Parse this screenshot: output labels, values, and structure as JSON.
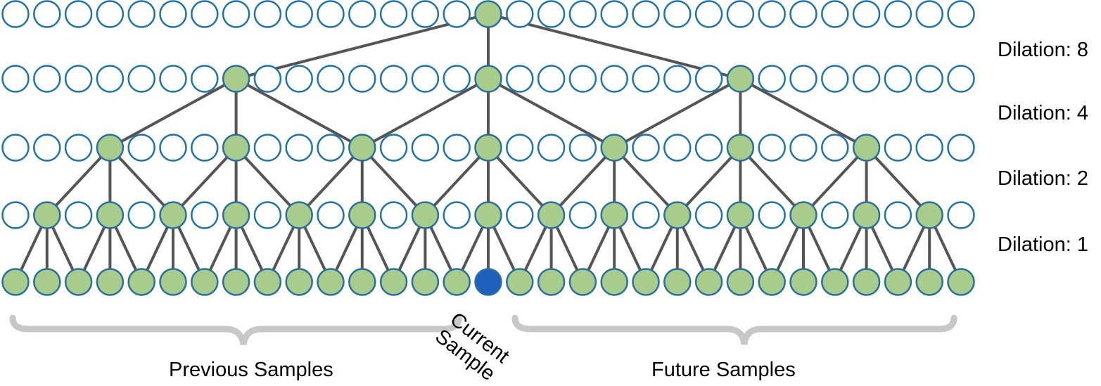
{
  "labels": {
    "dilation_8": "Dilation: 8",
    "dilation_4": "Dilation: 4",
    "dilation_2": "Dilation: 2",
    "dilation_1": "Dilation: 1",
    "previous_samples": "Previous Samples",
    "future_samples": "Future Samples",
    "current_line1": "Current",
    "current_line2": "Sample"
  },
  "network": {
    "nodes_per_row": 31,
    "current_index": 15,
    "rows": [
      {
        "active": [
          15
        ]
      },
      {
        "active": [
          7,
          15,
          23
        ]
      },
      {
        "active": [
          3,
          7,
          11,
          15,
          19,
          23,
          27
        ]
      },
      {
        "active": [
          1,
          3,
          5,
          7,
          9,
          11,
          13,
          15,
          17,
          19,
          21,
          23,
          25,
          27,
          29
        ]
      },
      {
        "active": "all"
      }
    ],
    "connections": [
      {
        "from_row": 0,
        "to_row": 1,
        "offsets": [
          -8,
          0,
          8
        ]
      },
      {
        "from_row": 1,
        "to_row": 2,
        "offsets": [
          -4,
          0,
          4
        ]
      },
      {
        "from_row": 2,
        "to_row": 3,
        "offsets": [
          -2,
          0,
          2
        ]
      },
      {
        "from_row": 3,
        "to_row": 4,
        "offsets": [
          -1,
          0,
          1
        ]
      }
    ]
  },
  "colors": {
    "active_fill": "#a8cc8c",
    "active_stroke": "#2a6f9e",
    "inactive_stroke": "#1f73a8",
    "current_fill": "#1f5fbd",
    "edge": "#555555",
    "brace": "#c8c8c8"
  }
}
